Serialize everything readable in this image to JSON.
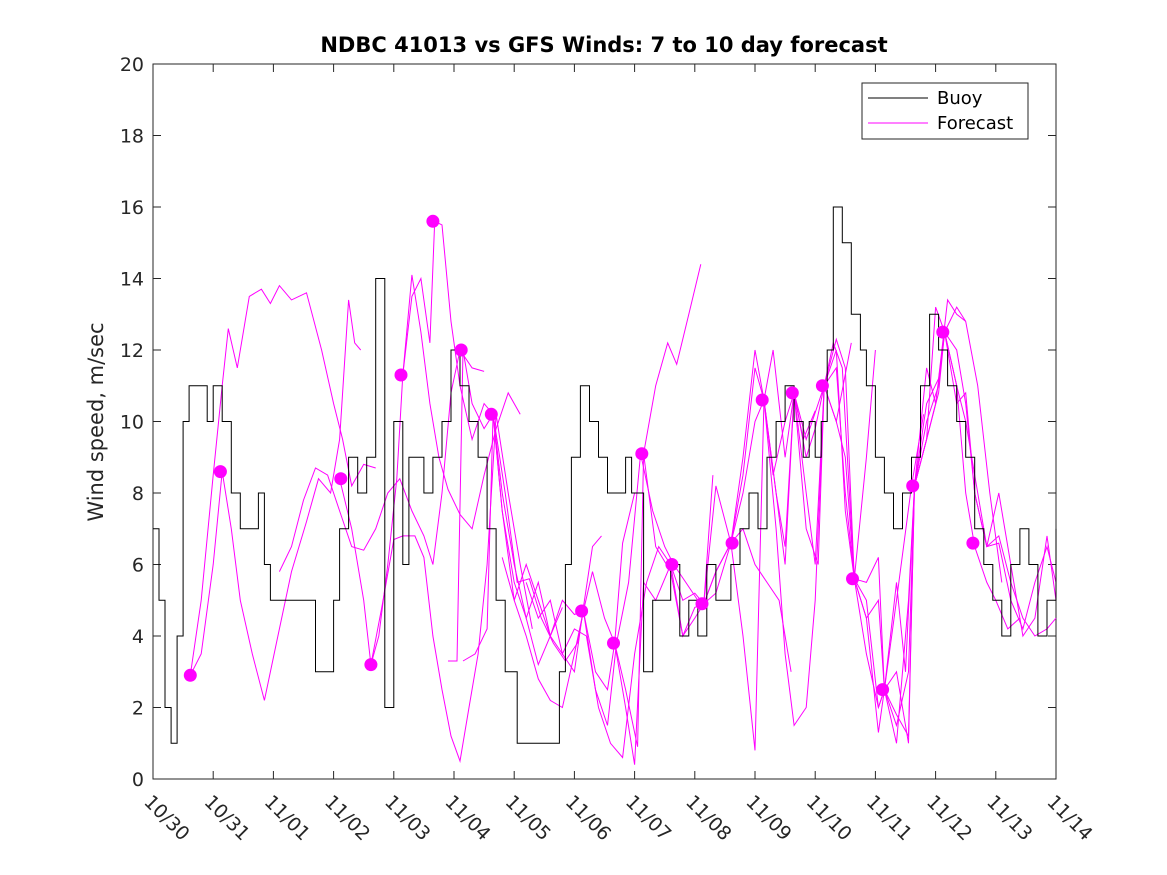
{
  "chart_data": {
    "type": "line",
    "title": "NDBC 41013 vs GFS Winds: 7 to 10 day forecast",
    "xlabel": "",
    "ylabel": "Wind speed, m/sec",
    "xlim": [
      0,
      15
    ],
    "ylim": [
      0,
      20
    ],
    "yticks": [
      0,
      2,
      4,
      6,
      8,
      10,
      12,
      14,
      16,
      18,
      20
    ],
    "xtick_labels": [
      "10/30",
      "10/31",
      "11/01",
      "11/02",
      "11/03",
      "11/04",
      "11/05",
      "11/06",
      "11/07",
      "11/08",
      "11/09",
      "11/10",
      "11/11",
      "11/12",
      "11/13",
      "11/14"
    ],
    "legend": {
      "position": "top-right",
      "entries": [
        {
          "label": "Buoy",
          "color": "#000000"
        },
        {
          "label": "Forecast",
          "color": "#ff00ff"
        }
      ]
    },
    "colors": {
      "buoy": "#000000",
      "forecast": "#ff00ff",
      "axis": "#262626"
    },
    "buoy": {
      "x": [
        0,
        0.1,
        0.2,
        0.3,
        0.4,
        0.5,
        0.6,
        0.75,
        0.9,
        1.0,
        1.15,
        1.3,
        1.45,
        1.6,
        1.75,
        1.85,
        1.95,
        2.1,
        2.3,
        2.5,
        2.7,
        2.85,
        3.0,
        3.1,
        3.25,
        3.4,
        3.55,
        3.7,
        3.85,
        4.0,
        4.15,
        4.25,
        4.35,
        4.5,
        4.65,
        4.8,
        4.95,
        5.1,
        5.25,
        5.4,
        5.55,
        5.7,
        5.85,
        5.95,
        6.05,
        6.2,
        6.4,
        6.6,
        6.75,
        6.85,
        6.95,
        7.1,
        7.25,
        7.4,
        7.55,
        7.7,
        7.85,
        7.95,
        8.05,
        8.15,
        8.3,
        8.45,
        8.6,
        8.75,
        8.9,
        9.05,
        9.2,
        9.35,
        9.5,
        9.6,
        9.75,
        9.9,
        10.05,
        10.2,
        10.35,
        10.5,
        10.65,
        10.8,
        10.9,
        11.0,
        11.1,
        11.2,
        11.3,
        11.45,
        11.6,
        11.75,
        11.85,
        12.0,
        12.15,
        12.3,
        12.45,
        12.6,
        12.75,
        12.9,
        13.05,
        13.2,
        13.35,
        13.5,
        13.65,
        13.8,
        13.95,
        14.1,
        14.25,
        14.4,
        14.55,
        14.7,
        14.85,
        15.0
      ],
      "y": [
        7,
        5,
        2,
        1,
        4,
        10,
        11,
        11,
        10,
        11,
        10,
        8,
        7,
        7,
        8,
        6,
        5,
        5,
        5,
        5,
        3,
        3,
        5,
        7,
        9,
        8,
        9,
        14,
        2,
        10,
        6,
        9,
        9,
        8,
        9,
        10,
        12,
        11,
        10,
        9,
        7,
        5,
        3,
        3,
        1,
        1,
        1,
        1,
        3,
        6,
        9,
        11,
        10,
        9,
        8,
        8,
        9,
        8,
        8,
        3,
        5,
        5,
        6,
        4,
        5,
        4,
        6,
        5,
        5,
        6,
        7,
        8,
        7,
        9,
        10,
        11,
        10,
        9,
        10,
        9,
        10,
        12,
        16,
        15,
        13,
        12,
        11,
        9,
        8,
        7,
        8,
        9,
        11,
        13,
        12,
        11,
        10,
        9,
        7,
        6,
        5,
        4,
        6,
        7,
        6,
        4,
        5,
        7
      ]
    },
    "forecast_lines": [
      {
        "x": [
          0.62,
          0.8,
          1.0,
          1.15,
          1.3,
          1.45,
          1.65,
          1.85,
          2.05,
          2.3,
          2.55,
          2.75,
          2.95,
          3.1,
          3.25,
          3.35,
          3.45
        ],
        "y": [
          2.9,
          3.5,
          6.0,
          8.6,
          7.0,
          5.0,
          3.5,
          2.2,
          3.8,
          5.8,
          7.2,
          8.4,
          8.0,
          9.5,
          13.4,
          12.2,
          12.0
        ]
      },
      {
        "x": [
          0.62,
          0.8,
          1.0,
          1.15,
          1.25,
          1.4,
          1.6,
          1.8,
          1.95,
          2.1,
          2.3,
          2.55,
          2.8,
          3.0,
          3.15,
          3.3,
          3.5,
          3.7
        ],
        "y": [
          2.9,
          5.0,
          8.5,
          11.0,
          12.6,
          11.5,
          13.5,
          13.7,
          13.3,
          13.8,
          13.4,
          13.6,
          12.0,
          10.5,
          9.5,
          8.2,
          8.8,
          8.7
        ]
      },
      {
        "x": [
          2.1,
          2.3,
          2.5,
          2.7,
          2.9,
          3.1,
          3.3,
          3.5,
          3.7,
          3.9,
          4.1,
          4.3,
          4.5,
          4.65,
          4.8,
          4.95,
          5.1,
          5.3,
          5.5
        ],
        "y": [
          5.8,
          6.5,
          7.8,
          8.7,
          8.5,
          7.5,
          6.5,
          6.4,
          7.0,
          8.0,
          8.4,
          7.5,
          6.8,
          6.0,
          8.0,
          10.8,
          12.0,
          11.5,
          11.4
        ]
      },
      {
        "x": [
          3.1,
          3.3,
          3.5,
          3.62,
          3.75,
          3.9,
          4.05,
          4.15,
          4.3,
          4.45,
          4.6,
          4.75,
          4.9,
          5.1,
          5.3,
          5.5,
          5.7,
          5.9,
          6.1
        ],
        "y": [
          8.4,
          7.0,
          5.0,
          3.2,
          4.0,
          6.0,
          8.4,
          11.3,
          14.1,
          12.5,
          10.5,
          9.0,
          8.1,
          7.4,
          7.0,
          8.5,
          9.8,
          10.8,
          10.2
        ]
      },
      {
        "x": [
          3.62,
          3.8,
          4.0,
          4.15,
          4.35,
          4.5,
          4.65,
          4.8,
          4.95,
          5.1,
          5.25,
          5.4,
          5.55,
          5.7,
          5.9,
          6.1,
          6.3
        ],
        "y": [
          3.2,
          4.8,
          6.7,
          6.8,
          6.8,
          6.2,
          4.0,
          2.5,
          1.2,
          0.5,
          2.0,
          3.5,
          6.0,
          10.2,
          8.0,
          6.0,
          4.2
        ]
      },
      {
        "x": [
          4.15,
          4.3,
          4.45,
          4.6,
          4.68,
          4.8,
          4.95,
          5.1,
          5.3,
          5.5,
          5.65,
          5.8,
          6.0,
          6.2,
          6.4,
          6.6,
          6.8
        ],
        "y": [
          11.3,
          13.5,
          14.0,
          12.2,
          15.6,
          15.5,
          12.8,
          11.0,
          9.5,
          10.5,
          10.2,
          8.0,
          6.0,
          4.5,
          5.5,
          4.0,
          4.8
        ]
      },
      {
        "x": [
          4.9,
          5.05,
          5.15,
          5.3,
          5.5,
          5.65,
          5.8,
          6.0,
          6.2,
          6.4,
          6.6,
          6.8,
          7.0,
          7.15,
          7.3,
          7.45
        ],
        "y": [
          3.3,
          3.3,
          12.0,
          10.5,
          9.8,
          10.2,
          7.5,
          5.0,
          6.0,
          5.0,
          4.0,
          3.5,
          3.0,
          4.8,
          6.5,
          6.8
        ]
      },
      {
        "x": [
          5.15,
          5.35,
          5.55,
          5.65,
          5.8,
          6.0,
          6.2,
          6.4,
          6.6,
          6.8,
          7.0,
          7.15,
          7.35,
          7.55,
          7.67,
          7.8,
          8.0
        ],
        "y": [
          3.3,
          3.5,
          4.2,
          10.2,
          7.5,
          5.5,
          4.5,
          3.2,
          4.0,
          5.0,
          4.6,
          4.7,
          3.0,
          2.5,
          3.8,
          6.6,
          8.0
        ]
      },
      {
        "x": [
          5.65,
          5.85,
          6.05,
          6.25,
          6.45,
          6.65,
          6.85,
          7.05,
          7.15,
          7.35,
          7.55,
          7.7,
          7.9,
          8.1,
          8.3,
          8.5,
          8.65
        ],
        "y": [
          10.2,
          8.0,
          5.5,
          5.6,
          4.5,
          3.8,
          3.3,
          3.8,
          4.7,
          2.5,
          1.5,
          3.8,
          5.5,
          9.1,
          7.5,
          6.5,
          6.0
        ]
      },
      {
        "x": [
          5.8,
          6.0,
          6.2,
          6.4,
          6.6,
          6.8,
          7.0,
          7.15,
          7.3,
          7.5,
          7.67,
          7.85,
          8.05,
          8.15,
          8.35,
          8.55,
          8.7,
          8.9,
          9.1
        ],
        "y": [
          6.2,
          5.0,
          4.0,
          2.8,
          2.2,
          2.0,
          3.5,
          4.7,
          5.8,
          4.5,
          3.8,
          2.5,
          0.9,
          9.1,
          11.0,
          12.2,
          11.6,
          13.0,
          14.4
        ]
      },
      {
        "x": [
          6.2,
          6.4,
          6.6,
          6.8,
          7.0,
          7.2,
          7.4,
          7.6,
          7.8,
          8.0,
          8.2,
          8.4,
          8.6,
          8.8,
          9.0,
          9.15,
          9.3
        ],
        "y": [
          5.5,
          4.5,
          5.0,
          3.5,
          4.2,
          4.0,
          2.0,
          1.0,
          0.6,
          3.5,
          5.5,
          6.5,
          6.0,
          5.0,
          5.2,
          4.9,
          8.5
        ]
      },
      {
        "x": [
          7.67,
          7.85,
          8.0,
          8.15,
          8.35,
          8.6,
          8.8,
          9.0,
          9.15,
          9.35,
          9.6,
          9.8,
          10.0,
          10.2,
          10.4,
          10.6
        ],
        "y": [
          3.8,
          2.0,
          0.4,
          5.5,
          5.0,
          6.0,
          4.0,
          4.8,
          4.9,
          5.8,
          6.6,
          7.0,
          6.0,
          5.5,
          5.0,
          3.0
        ]
      },
      {
        "x": [
          8.15,
          8.35,
          8.6,
          8.8,
          9.0,
          9.15,
          9.35,
          9.6,
          9.8,
          10.0,
          10.15,
          10.3,
          10.5,
          10.65,
          10.8,
          11.0
        ],
        "y": [
          9.1,
          6.5,
          5.8,
          4.0,
          4.5,
          4.9,
          5.2,
          6.6,
          8.0,
          10.0,
          10.6,
          8.5,
          10.0,
          10.8,
          9.5,
          10.3
        ]
      },
      {
        "x": [
          8.65,
          8.85,
          9.05,
          9.15,
          9.35,
          9.6,
          9.8,
          10.0,
          10.15,
          10.3,
          10.5,
          10.65,
          10.85,
          11.05,
          11.15,
          11.35,
          11.6
        ],
        "y": [
          6.0,
          5.5,
          5.0,
          4.9,
          5.8,
          6.6,
          8.5,
          11.5,
          10.6,
          12.0,
          9.0,
          10.8,
          9.5,
          10.5,
          11.0,
          10.0,
          12.2
        ]
      },
      {
        "x": [
          9.15,
          9.35,
          9.6,
          9.8,
          10.0,
          10.15,
          10.35,
          10.5,
          10.65,
          10.85,
          11.0,
          11.15,
          11.3,
          11.45,
          11.65,
          11.85,
          12.0
        ],
        "y": [
          4.9,
          8.2,
          6.6,
          9.0,
          12.0,
          10.6,
          8.0,
          6.5,
          10.8,
          9.0,
          9.8,
          11.0,
          12.2,
          11.5,
          5.6,
          9.0,
          12.0
        ]
      },
      {
        "x": [
          9.6,
          9.8,
          10.0,
          10.15,
          10.35,
          10.5,
          10.65,
          10.85,
          11.05,
          11.15,
          11.35,
          11.5,
          11.65,
          11.85,
          12.05,
          12.15,
          12.35,
          12.6,
          12.8
        ],
        "y": [
          6.6,
          4.0,
          0.8,
          10.6,
          8.0,
          6.0,
          10.8,
          7.0,
          6.0,
          11.0,
          10.0,
          9.0,
          5.6,
          3.5,
          2.0,
          2.5,
          5.0,
          8.2,
          10.2
        ]
      },
      {
        "x": [
          10.15,
          10.35,
          10.5,
          10.65,
          10.85,
          11.0,
          11.15,
          11.35,
          11.5,
          11.65,
          11.85,
          12.05,
          12.15,
          12.35,
          12.55,
          12.65,
          12.85,
          13.0
        ],
        "y": [
          10.6,
          7.0,
          3.5,
          1.5,
          2.0,
          5.0,
          11.0,
          11.5,
          8.0,
          5.6,
          4.5,
          1.3,
          2.5,
          1.0,
          5.0,
          8.2,
          9.5,
          10.5
        ]
      },
      {
        "x": [
          10.65,
          10.85,
          11.0,
          11.15,
          11.35,
          11.5,
          11.65,
          11.85,
          12.05,
          12.15,
          12.35,
          12.55,
          12.65,
          12.85,
          13.05,
          13.2,
          13.35,
          13.5
        ],
        "y": [
          10.8,
          8.0,
          6.0,
          11.0,
          12.3,
          11.5,
          5.6,
          5.5,
          6.2,
          2.5,
          3.0,
          1.0,
          8.2,
          10.5,
          11.2,
          13.4,
          13.0,
          12.8
        ]
      },
      {
        "x": [
          11.15,
          11.35,
          11.5,
          11.65,
          11.85,
          12.05,
          12.15,
          12.35,
          12.5,
          12.65,
          12.85,
          13.0,
          13.15,
          13.35,
          13.5,
          13.7,
          13.9,
          14.1
        ],
        "y": [
          11.0,
          12.0,
          7.5,
          5.6,
          4.5,
          5.0,
          2.5,
          5.5,
          3.0,
          8.2,
          9.5,
          13.2,
          12.5,
          13.2,
          12.8,
          11.0,
          8.0,
          5.5
        ]
      },
      {
        "x": [
          11.65,
          11.85,
          12.05,
          12.15,
          12.35,
          12.55,
          12.65,
          12.85,
          13.0,
          13.15,
          13.35,
          13.5,
          13.65,
          13.85,
          14.0,
          14.2,
          14.4
        ],
        "y": [
          5.6,
          5.0,
          2.0,
          2.5,
          1.5,
          3.0,
          8.2,
          11.5,
          10.5,
          12.5,
          11.0,
          8.0,
          6.5,
          5.5,
          5.0,
          4.2,
          4.5
        ]
      },
      {
        "x": [
          12.15,
          12.35,
          12.55,
          12.65,
          12.85,
          13.05,
          13.15,
          13.35,
          13.5,
          13.65,
          13.85,
          14.05,
          14.25,
          14.45,
          14.65,
          14.85,
          15.0
        ],
        "y": [
          2.5,
          1.8,
          1.2,
          8.2,
          9.5,
          10.8,
          12.5,
          10.5,
          10.8,
          8.0,
          6.5,
          6.8,
          5.5,
          4.5,
          4.0,
          4.2,
          4.5
        ]
      },
      {
        "x": [
          12.65,
          12.85,
          13.05,
          13.15,
          13.35,
          13.5,
          13.65,
          13.85,
          14.05,
          14.25,
          14.45,
          14.65,
          14.85,
          15.0
        ],
        "y": [
          8.2,
          10.0,
          11.0,
          12.5,
          12.0,
          10.5,
          8.0,
          6.5,
          8.0,
          6.0,
          4.0,
          4.5,
          6.8,
          5.0
        ]
      },
      {
        "x": [
          13.15,
          13.35,
          13.5,
          13.65,
          13.85,
          14.05,
          14.25,
          14.45,
          14.65,
          14.85,
          15.0
        ],
        "y": [
          12.5,
          11.0,
          10.0,
          8.5,
          6.5,
          6.6,
          5.0,
          4.2,
          5.5,
          6.5,
          5.5
        ]
      }
    ],
    "forecast_markers": {
      "x": [
        0.62,
        1.12,
        3.12,
        3.62,
        4.12,
        4.65,
        5.12,
        5.62,
        7.12,
        7.65,
        8.12,
        8.62,
        9.12,
        9.62,
        10.12,
        10.62,
        11.12,
        11.62,
        12.12,
        12.62,
        13.12,
        13.62
      ],
      "y": [
        2.9,
        8.6,
        8.4,
        3.2,
        11.3,
        15.6,
        12.0,
        10.2,
        4.7,
        3.8,
        9.1,
        6.0,
        4.9,
        6.6,
        10.6,
        10.8,
        11.0,
        5.6,
        2.5,
        8.2,
        12.5,
        6.6
      ]
    }
  }
}
